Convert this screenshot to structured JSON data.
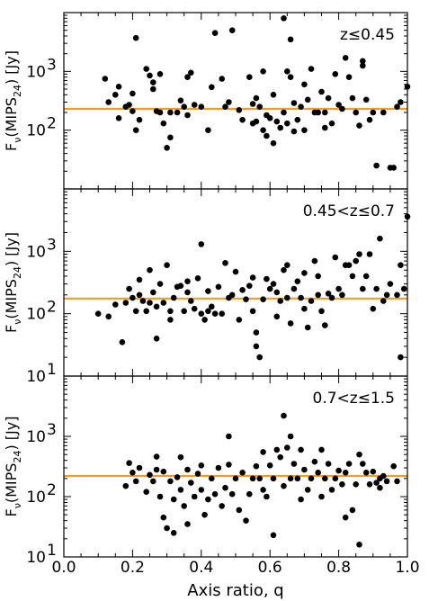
{
  "chart_data": {
    "type": "scatter",
    "layout": "three vertically stacked panels sharing the x axis",
    "xlabel": "Axis ratio, q",
    "xlim": [
      0.0,
      1.0
    ],
    "x_ticks": [
      "0.0",
      "0.2",
      "0.4",
      "0.6",
      "0.8",
      "1.0"
    ],
    "y_scale": "log",
    "ylim": [
      10,
      10000
    ],
    "marker_color": "#000000",
    "line_color": "#f59a23",
    "panels": [
      {
        "annotation": "z≤0.45",
        "ylabel": {
          "base": "F",
          "sub1": "ν",
          "mid": "(MIPS",
          "sub2": "24",
          "end": ") [Jy]"
        },
        "y_ticks": [
          {
            "b": "10",
            "e": "2"
          },
          {
            "b": "10",
            "e": "3"
          }
        ],
        "hline_y": 230,
        "points": [
          [
            0.12,
            750
          ],
          [
            0.13,
            300
          ],
          [
            0.15,
            400
          ],
          [
            0.16,
            550
          ],
          [
            0.16,
            160
          ],
          [
            0.18,
            250
          ],
          [
            0.19,
            270
          ],
          [
            0.2,
            420
          ],
          [
            0.2,
            210
          ],
          [
            0.21,
            3700
          ],
          [
            0.21,
            100
          ],
          [
            0.22,
            150
          ],
          [
            0.24,
            1100
          ],
          [
            0.25,
            850
          ],
          [
            0.26,
            650
          ],
          [
            0.26,
            500
          ],
          [
            0.27,
            210
          ],
          [
            0.28,
            900
          ],
          [
            0.28,
            200
          ],
          [
            0.29,
            130
          ],
          [
            0.3,
            50
          ],
          [
            0.31,
            200
          ],
          [
            0.31,
            75
          ],
          [
            0.33,
            200
          ],
          [
            0.34,
            320
          ],
          [
            0.35,
            250
          ],
          [
            0.36,
            800
          ],
          [
            0.36,
            180
          ],
          [
            0.37,
            950
          ],
          [
            0.38,
            270
          ],
          [
            0.4,
            250
          ],
          [
            0.42,
            100
          ],
          [
            0.43,
            540
          ],
          [
            0.44,
            4500
          ],
          [
            0.46,
            750
          ],
          [
            0.47,
            250
          ],
          [
            0.48,
            300
          ],
          [
            0.49,
            5000
          ],
          [
            0.51,
            220
          ],
          [
            0.52,
            150
          ],
          [
            0.54,
            800
          ],
          [
            0.55,
            280
          ],
          [
            0.55,
            130
          ],
          [
            0.56,
            350
          ],
          [
            0.56,
            140
          ],
          [
            0.57,
            250
          ],
          [
            0.58,
            1000
          ],
          [
            0.58,
            100
          ],
          [
            0.59,
            180
          ],
          [
            0.59,
            80
          ],
          [
            0.6,
            160
          ],
          [
            0.61,
            400
          ],
          [
            0.61,
            60
          ],
          [
            0.62,
            140
          ],
          [
            0.63,
            110
          ],
          [
            0.64,
            8000
          ],
          [
            0.64,
            200
          ],
          [
            0.65,
            1000
          ],
          [
            0.65,
            130
          ],
          [
            0.66,
            3500
          ],
          [
            0.66,
            800
          ],
          [
            0.67,
            290
          ],
          [
            0.67,
            95
          ],
          [
            0.68,
            150
          ],
          [
            0.69,
            250
          ],
          [
            0.7,
            600
          ],
          [
            0.7,
            100
          ],
          [
            0.71,
            330
          ],
          [
            0.72,
            1100
          ],
          [
            0.73,
            200
          ],
          [
            0.74,
            200
          ],
          [
            0.75,
            450
          ],
          [
            0.76,
            200
          ],
          [
            0.76,
            110
          ],
          [
            0.77,
            350
          ],
          [
            0.78,
            130
          ],
          [
            0.79,
            900
          ],
          [
            0.8,
            270
          ],
          [
            0.81,
            230
          ],
          [
            0.82,
            1700
          ],
          [
            0.83,
            800
          ],
          [
            0.84,
            350
          ],
          [
            0.85,
            200
          ],
          [
            0.86,
            120
          ],
          [
            0.87,
            1500
          ],
          [
            0.87,
            1250
          ],
          [
            0.88,
            330
          ],
          [
            0.89,
            150
          ],
          [
            0.9,
            200
          ],
          [
            0.91,
            25
          ],
          [
            0.93,
            200
          ],
          [
            0.95,
            23
          ],
          [
            0.96,
            23
          ],
          [
            0.97,
            250
          ],
          [
            0.98,
            300
          ],
          [
            1.0,
            550
          ]
        ]
      },
      {
        "annotation": "0.45<z≤0.7",
        "ylabel": {
          "base": "F",
          "sub1": "ν",
          "mid": "(MIPS",
          "sub2": "24",
          "end": ") [Jy]"
        },
        "y_ticks": [
          {
            "b": "10",
            "e": "1"
          },
          {
            "b": "10",
            "e": "2"
          },
          {
            "b": "10",
            "e": "3"
          }
        ],
        "hline_y": 175,
        "points": [
          [
            0.1,
            100
          ],
          [
            0.13,
            90
          ],
          [
            0.15,
            140
          ],
          [
            0.17,
            35
          ],
          [
            0.18,
            150
          ],
          [
            0.19,
            250
          ],
          [
            0.2,
            180
          ],
          [
            0.21,
            110
          ],
          [
            0.22,
            350
          ],
          [
            0.22,
            200
          ],
          [
            0.23,
            160
          ],
          [
            0.24,
            110
          ],
          [
            0.25,
            500
          ],
          [
            0.25,
            150
          ],
          [
            0.26,
            220
          ],
          [
            0.27,
            40
          ],
          [
            0.27,
            130
          ],
          [
            0.28,
            300
          ],
          [
            0.29,
            150
          ],
          [
            0.3,
            600
          ],
          [
            0.31,
            110
          ],
          [
            0.31,
            80
          ],
          [
            0.32,
            180
          ],
          [
            0.33,
            270
          ],
          [
            0.34,
            280
          ],
          [
            0.35,
            110
          ],
          [
            0.36,
            330
          ],
          [
            0.36,
            220
          ],
          [
            0.37,
            160
          ],
          [
            0.38,
            120
          ],
          [
            0.39,
            370
          ],
          [
            0.4,
            100
          ],
          [
            0.4,
            1300
          ],
          [
            0.41,
            80
          ],
          [
            0.42,
            110
          ],
          [
            0.42,
            230
          ],
          [
            0.43,
            130
          ],
          [
            0.44,
            100
          ],
          [
            0.45,
            270
          ],
          [
            0.46,
            100
          ],
          [
            0.47,
            650
          ],
          [
            0.48,
            180
          ],
          [
            0.49,
            200
          ],
          [
            0.5,
            470
          ],
          [
            0.51,
            80
          ],
          [
            0.52,
            240
          ],
          [
            0.53,
            170
          ],
          [
            0.54,
            280
          ],
          [
            0.55,
            380
          ],
          [
            0.55,
            110
          ],
          [
            0.56,
            50
          ],
          [
            0.56,
            30
          ],
          [
            0.57,
            20
          ],
          [
            0.58,
            170
          ],
          [
            0.59,
            360
          ],
          [
            0.6,
            250
          ],
          [
            0.61,
            300
          ],
          [
            0.62,
            220
          ],
          [
            0.62,
            90
          ],
          [
            0.63,
            160
          ],
          [
            0.64,
            500
          ],
          [
            0.65,
            600
          ],
          [
            0.65,
            180
          ],
          [
            0.66,
            70
          ],
          [
            0.67,
            250
          ],
          [
            0.68,
            330
          ],
          [
            0.69,
            180
          ],
          [
            0.7,
            450
          ],
          [
            0.7,
            120
          ],
          [
            0.71,
            60
          ],
          [
            0.72,
            160
          ],
          [
            0.73,
            700
          ],
          [
            0.74,
            200
          ],
          [
            0.74,
            400
          ],
          [
            0.75,
            110
          ],
          [
            0.76,
            65
          ],
          [
            0.77,
            210
          ],
          [
            0.78,
            180
          ],
          [
            0.79,
            800
          ],
          [
            0.8,
            250
          ],
          [
            0.81,
            200
          ],
          [
            0.82,
            600
          ],
          [
            0.83,
            600
          ],
          [
            0.84,
            400
          ],
          [
            0.85,
            700
          ],
          [
            0.86,
            900
          ],
          [
            0.87,
            250
          ],
          [
            0.88,
            400
          ],
          [
            0.89,
            900
          ],
          [
            0.9,
            120
          ],
          [
            0.91,
            250
          ],
          [
            0.92,
            1600
          ],
          [
            0.93,
            160
          ],
          [
            0.94,
            200
          ],
          [
            0.95,
            300
          ],
          [
            0.97,
            200
          ],
          [
            0.98,
            600
          ],
          [
            0.98,
            20
          ],
          [
            0.99,
            250
          ],
          [
            1.0,
            3600
          ]
        ]
      },
      {
        "annotation": "0.7<z≤1.5",
        "ylabel": {
          "base": "F",
          "sub1": "ν",
          "mid": "(MIPS",
          "sub2": "24",
          "end": ") [Jy]"
        },
        "y_ticks": [
          {
            "b": "10",
            "e": "1"
          },
          {
            "b": "10",
            "e": "2"
          },
          {
            "b": "10",
            "e": "3"
          }
        ],
        "hline_y": 220,
        "points": [
          [
            0.18,
            150
          ],
          [
            0.19,
            360
          ],
          [
            0.2,
            250
          ],
          [
            0.21,
            180
          ],
          [
            0.22,
            300
          ],
          [
            0.24,
            120
          ],
          [
            0.25,
            230
          ],
          [
            0.26,
            180
          ],
          [
            0.27,
            460
          ],
          [
            0.27,
            280
          ],
          [
            0.28,
            100
          ],
          [
            0.29,
            45
          ],
          [
            0.29,
            260
          ],
          [
            0.3,
            30
          ],
          [
            0.31,
            180
          ],
          [
            0.32,
            90
          ],
          [
            0.32,
            25
          ],
          [
            0.33,
            210
          ],
          [
            0.34,
            450
          ],
          [
            0.34,
            130
          ],
          [
            0.35,
            70
          ],
          [
            0.36,
            35
          ],
          [
            0.36,
            280
          ],
          [
            0.37,
            170
          ],
          [
            0.38,
            100
          ],
          [
            0.39,
            240
          ],
          [
            0.4,
            330
          ],
          [
            0.4,
            130
          ],
          [
            0.41,
            50
          ],
          [
            0.42,
            90
          ],
          [
            0.43,
            200
          ],
          [
            0.44,
            110
          ],
          [
            0.45,
            300
          ],
          [
            0.46,
            70
          ],
          [
            0.47,
            140
          ],
          [
            0.48,
            1000
          ],
          [
            0.48,
            340
          ],
          [
            0.49,
            110
          ],
          [
            0.5,
            200
          ],
          [
            0.51,
            60
          ],
          [
            0.52,
            250
          ],
          [
            0.53,
            40
          ],
          [
            0.54,
            110
          ],
          [
            0.55,
            200
          ],
          [
            0.56,
            320
          ],
          [
            0.57,
            200
          ],
          [
            0.58,
            550
          ],
          [
            0.58,
            130
          ],
          [
            0.59,
            100
          ],
          [
            0.6,
            330
          ],
          [
            0.61,
            200
          ],
          [
            0.61,
            23
          ],
          [
            0.62,
            600
          ],
          [
            0.63,
            450
          ],
          [
            0.64,
            150
          ],
          [
            0.64,
            2200
          ],
          [
            0.65,
            650
          ],
          [
            0.66,
            200
          ],
          [
            0.66,
            1000
          ],
          [
            0.67,
            350
          ],
          [
            0.68,
            200
          ],
          [
            0.69,
            600
          ],
          [
            0.69,
            90
          ],
          [
            0.7,
            280
          ],
          [
            0.71,
            130
          ],
          [
            0.72,
            200
          ],
          [
            0.73,
            380
          ],
          [
            0.74,
            250
          ],
          [
            0.75,
            600
          ],
          [
            0.75,
            100
          ],
          [
            0.76,
            200
          ],
          [
            0.77,
            350
          ],
          [
            0.78,
            130
          ],
          [
            0.79,
            200
          ],
          [
            0.8,
            270
          ],
          [
            0.81,
            160
          ],
          [
            0.82,
            45
          ],
          [
            0.82,
            250
          ],
          [
            0.83,
            350
          ],
          [
            0.84,
            60
          ],
          [
            0.85,
            160
          ],
          [
            0.86,
            500
          ],
          [
            0.86,
            16
          ],
          [
            0.87,
            350
          ],
          [
            0.88,
            250
          ],
          [
            0.89,
            160
          ],
          [
            0.9,
            260
          ],
          [
            0.91,
            170
          ],
          [
            0.92,
            140
          ],
          [
            0.92,
            200
          ],
          [
            0.93,
            220
          ],
          [
            0.94,
            180
          ],
          [
            0.96,
            320
          ],
          [
            0.97,
            180
          ]
        ]
      }
    ]
  }
}
